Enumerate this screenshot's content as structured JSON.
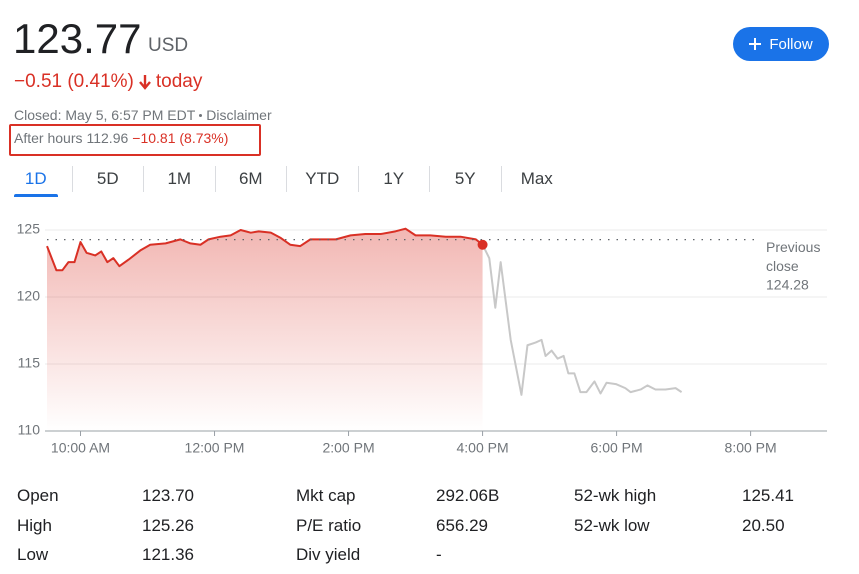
{
  "header": {
    "price": "123.77",
    "currency": "USD",
    "change": "−0.51 (0.41%)",
    "change_period": "today",
    "closed": "Closed: May 5, 6:57 PM EDT",
    "disclaimer": "Disclaimer",
    "after_hours_label": "After hours",
    "after_hours_price": "112.96",
    "after_hours_change": "−10.81 (8.73%)",
    "follow": "Follow"
  },
  "tabs": [
    "1D",
    "5D",
    "1M",
    "6M",
    "YTD",
    "1Y",
    "5Y",
    "Max"
  ],
  "selected_tab": 0,
  "chart_data": {
    "type": "line",
    "x": [
      9.5,
      9.64,
      9.73,
      9.82,
      9.91,
      10,
      10.09,
      10.22,
      10.31,
      10.4,
      10.49,
      10.58,
      10.72,
      10.9,
      11.04,
      11.27,
      11.49,
      11.64,
      11.79,
      11.91,
      12.09,
      12.24,
      12.39,
      12.54,
      12.66,
      12.84,
      12.99,
      13.13,
      13.28,
      13.43,
      13.58,
      13.81,
      14.03,
      14.25,
      14.48,
      14.7,
      14.85,
      15,
      15.22,
      15.45,
      15.67,
      15.9,
      16,
      16.1,
      16.19,
      16.27,
      16.42,
      16.58,
      16.67,
      16.79,
      16.88,
      16.94,
      17.03,
      17.12,
      17.21,
      17.28,
      17.37,
      17.46,
      17.55,
      17.67,
      17.76,
      17.85,
      17.99,
      18.13,
      18.21,
      18.36,
      18.46,
      18.58,
      18.73,
      18.88,
      18.97
    ],
    "series": [
      {
        "color": "#d93025",
        "fill": true,
        "end_marker": true,
        "values": [
          123.8,
          122.0,
          122.0,
          122.6,
          122.6,
          124.1,
          123.3,
          123.1,
          123.4,
          122.6,
          122.9,
          122.3,
          122.8,
          123.5,
          123.9,
          124.0,
          124.3,
          124.0,
          123.9,
          124.3,
          124.5,
          124.6,
          125.0,
          124.8,
          124.9,
          124.8,
          124.4,
          123.9,
          123.8,
          124.3,
          124.3,
          124.3,
          124.6,
          124.7,
          124.7,
          124.9,
          125.1,
          124.6,
          124.6,
          124.5,
          124.5,
          124.3,
          123.9,
          null,
          null,
          null,
          null,
          null,
          null,
          null,
          null,
          null,
          null,
          null,
          null,
          null,
          null,
          null,
          null,
          null,
          null,
          null,
          null,
          null,
          null,
          null,
          null,
          null,
          null,
          null,
          null
        ]
      },
      {
        "color": "#c8c8c8",
        "fill": false,
        "end_marker": false,
        "values": [
          null,
          null,
          null,
          null,
          null,
          null,
          null,
          null,
          null,
          null,
          null,
          null,
          null,
          null,
          null,
          null,
          null,
          null,
          null,
          null,
          null,
          null,
          null,
          null,
          null,
          null,
          null,
          null,
          null,
          null,
          null,
          null,
          null,
          null,
          null,
          null,
          null,
          null,
          null,
          null,
          null,
          null,
          123.9,
          122.9,
          119.2,
          122.6,
          116.8,
          112.7,
          116.4,
          116.6,
          116.8,
          115.6,
          116.0,
          115.4,
          115.6,
          114.3,
          114.3,
          112.9,
          112.9,
          113.7,
          112.8,
          113.6,
          113.5,
          113.2,
          112.9,
          113.1,
          113.4,
          113.1,
          113.1,
          113.2,
          112.9
        ]
      }
    ],
    "xlim": [
      9.5,
      21.14
    ],
    "xticks": [
      {
        "value": 10,
        "label": "10:00 AM"
      },
      {
        "value": 12,
        "label": "12:00 PM"
      },
      {
        "value": 14,
        "label": "2:00 PM"
      },
      {
        "value": 16,
        "label": "4:00 PM"
      },
      {
        "value": 18,
        "label": "6:00 PM"
      },
      {
        "value": 20,
        "label": "8:00 PM"
      }
    ],
    "ylim": [
      110,
      126
    ],
    "yticks": [
      110,
      115,
      120,
      125
    ],
    "grid": true,
    "reference_line": {
      "label": "Previous close",
      "value": 124.28
    }
  },
  "stats": [
    {
      "label": "Open",
      "value": "123.70"
    },
    {
      "label": "High",
      "value": "125.26"
    },
    {
      "label": "Low",
      "value": "121.36"
    },
    {
      "label": "Mkt cap",
      "value": "292.06B"
    },
    {
      "label": "P/E ratio",
      "value": "656.29"
    },
    {
      "label": "Div yield",
      "value": "-"
    },
    {
      "label": "52-wk high",
      "value": "125.41"
    },
    {
      "label": "52-wk low",
      "value": "20.50"
    }
  ]
}
